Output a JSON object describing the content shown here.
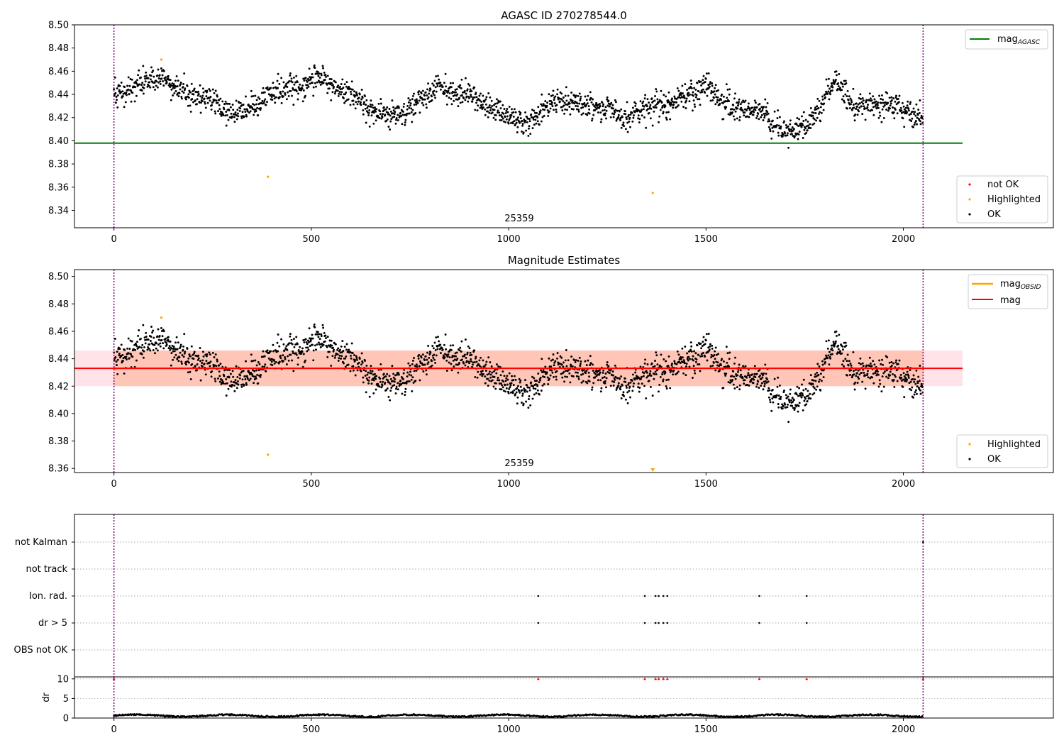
{
  "colors": {
    "ok": "#000000",
    "highlighted": "#ffa500",
    "not_ok": "#ff0000",
    "mag_agasc": "#008000",
    "mag": "#ff0000",
    "mag_obsid": "#ffa500",
    "band_obsid": "#ffa07a",
    "band_mag": "#ffc0cb",
    "boundary": "#800080",
    "flag_grid": "#aaaaaa"
  },
  "panel1": {
    "title": "AGASC ID 270278544.0",
    "annotation": "25359",
    "legend_lines": [
      {
        "main": "mag",
        "sub": "AGASC",
        "color_key": "mag_agasc"
      }
    ],
    "legend_points": [
      {
        "label": "not OK",
        "color_key": "not_ok"
      },
      {
        "label": "Highlighted",
        "color_key": "highlighted"
      },
      {
        "label": "OK",
        "color_key": "ok"
      }
    ]
  },
  "panel2": {
    "title": "Magnitude Estimates",
    "annotation": "25359",
    "legend_lines": [
      {
        "main": "mag",
        "sub": "OBSID",
        "color_key": "mag_obsid"
      },
      {
        "main": "mag",
        "sub": "",
        "color_key": "mag"
      }
    ],
    "legend_points": [
      {
        "label": "Highlighted",
        "color_key": "highlighted"
      },
      {
        "label": "OK",
        "color_key": "ok"
      }
    ]
  },
  "panel3": {
    "flag_labels": [
      "not Kalman",
      "not track",
      "Ion. rad.",
      "dr > 5",
      "OBS not OK"
    ],
    "dr_ylabel": "dr"
  },
  "chart_data": [
    {
      "type": "scatter",
      "title": "AGASC ID 270278544.0",
      "xlim": [
        -100,
        2380
      ],
      "ylim": [
        8.325,
        8.5
      ],
      "xticks": [
        0,
        500,
        1000,
        1500,
        2000
      ],
      "yticks": [
        8.34,
        8.36,
        8.38,
        8.4,
        8.42,
        8.44,
        8.46,
        8.48,
        8.5
      ],
      "obsid_boundaries": [
        0,
        2050
      ],
      "obsid_label": "25359",
      "mag_agasc": 8.398,
      "mag_agasc_xrange": [
        -100,
        2150
      ],
      "trend_knots": {
        "x": [
          0,
          60,
          120,
          180,
          250,
          300,
          360,
          420,
          480,
          520,
          560,
          600,
          640,
          700,
          760,
          820,
          880,
          940,
          1000,
          1050,
          1100,
          1150,
          1200,
          1250,
          1300,
          1350,
          1400,
          1450,
          1500,
          1550,
          1600,
          1640,
          1700,
          1750,
          1800,
          1830,
          1870,
          1920,
          1980,
          2050
        ],
        "y": [
          8.44,
          8.448,
          8.456,
          8.44,
          8.435,
          8.422,
          8.43,
          8.445,
          8.448,
          8.456,
          8.445,
          8.44,
          8.428,
          8.42,
          8.43,
          8.448,
          8.44,
          8.432,
          8.422,
          8.414,
          8.432,
          8.434,
          8.43,
          8.428,
          8.418,
          8.43,
          8.432,
          8.438,
          8.448,
          8.432,
          8.428,
          8.425,
          8.408,
          8.412,
          8.434,
          8.455,
          8.428,
          8.432,
          8.43,
          8.418
        ]
      },
      "scatter_sd": 0.007,
      "n_ok_points": 2050,
      "highlighted_points": [
        {
          "x": 120,
          "y": 8.47
        },
        {
          "x": 390,
          "y": 8.369
        },
        {
          "x": 1365,
          "y": 8.355
        }
      ],
      "legend": [
        "mag_AGASC",
        "not OK",
        "Highlighted",
        "OK"
      ]
    },
    {
      "type": "scatter",
      "title": "Magnitude Estimates",
      "xlim": [
        -100,
        2380
      ],
      "ylim": [
        8.357,
        8.505
      ],
      "xticks": [
        0,
        500,
        1000,
        1500,
        2000
      ],
      "yticks": [
        8.36,
        8.38,
        8.4,
        8.42,
        8.44,
        8.46,
        8.48,
        8.5
      ],
      "mag_obsid": 8.433,
      "mag_obsid_band": [
        8.42,
        8.446
      ],
      "mag_obsid_xrange": [
        0,
        2050
      ],
      "mag": 8.433,
      "mag_band": [
        8.42,
        8.446
      ],
      "mag_xrange": [
        -100,
        2150
      ],
      "highlighted_points": [
        {
          "x": 120,
          "y": 8.47
        },
        {
          "x": 390,
          "y": 8.37
        }
      ],
      "highlighted_offscale_x": 1365,
      "legend": [
        "mag_OBSID",
        "mag",
        "Highlighted",
        "OK"
      ]
    },
    {
      "type": "scatter",
      "flag_categories": [
        "not Kalman",
        "not track",
        "Ion. rad.",
        "dr > 5",
        "OBS not OK"
      ],
      "flag_events": {
        "not Kalman": [
          2050
        ],
        "not track": [],
        "Ion. rad.": [
          1075,
          1345,
          1372,
          1380,
          1392,
          1402,
          1635,
          1755
        ],
        "dr > 5": [
          1075,
          1345,
          1372,
          1380,
          1392,
          1402,
          1635,
          1755
        ],
        "OBS not OK": []
      },
      "dr_yticks": [
        0,
        5,
        10
      ],
      "dr_ylim": [
        0,
        10.5
      ],
      "dr_baseline": 0.6,
      "dr_capped_points": [
        0,
        1075,
        1345,
        1372,
        1380,
        1392,
        1402,
        1635,
        1755,
        2050
      ]
    }
  ]
}
